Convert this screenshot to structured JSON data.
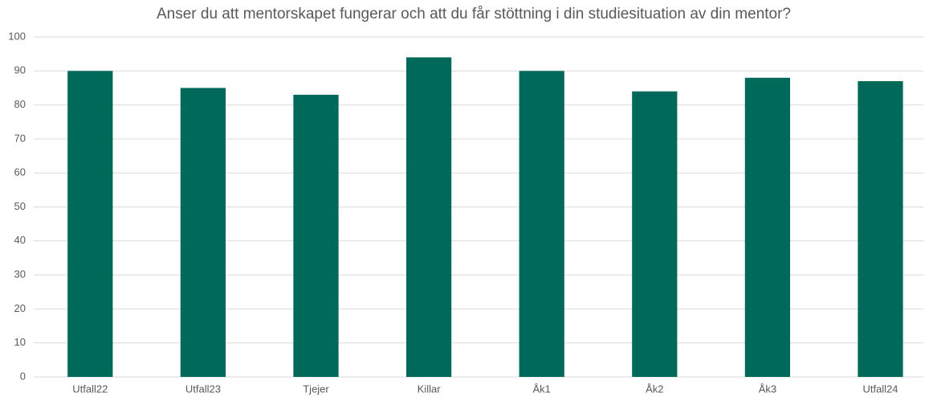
{
  "chart_data": {
    "type": "bar",
    "title": "Anser du att mentorskapet fungerar och att du får stöttning i din studiesituation av din mentor?",
    "categories": [
      "Utfall22",
      "Utfall23",
      "Tjejer",
      "Killar",
      "Åk1",
      "Åk2",
      "Åk3",
      "Utfall24"
    ],
    "values": [
      90,
      85,
      83,
      94,
      90,
      84,
      88,
      87
    ],
    "color": "#00695a",
    "ylim": [
      0,
      100
    ],
    "yticks": [
      0,
      10,
      20,
      30,
      40,
      50,
      60,
      70,
      80,
      90,
      100
    ],
    "grid": true
  }
}
